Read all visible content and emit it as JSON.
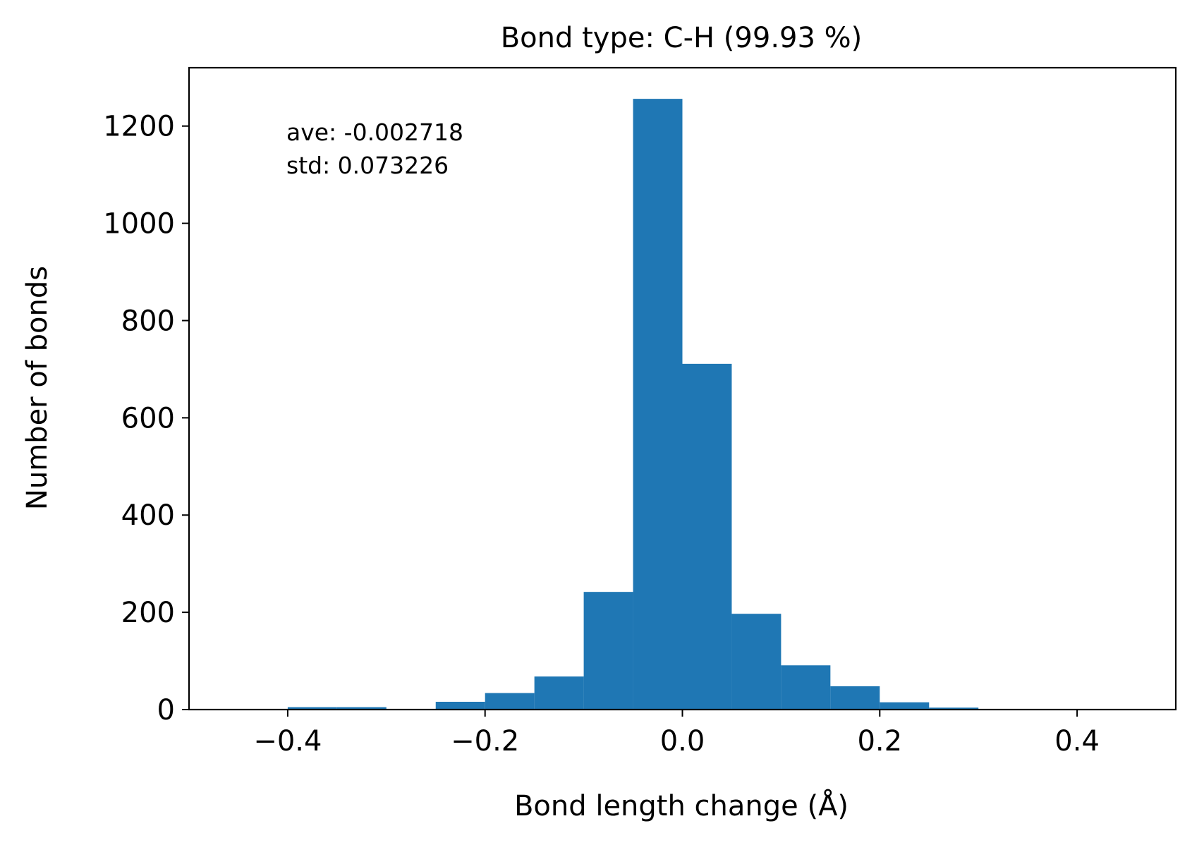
{
  "chart_data": {
    "type": "bar",
    "title": "Bond type: C-H (99.93 %)",
    "xlabel": "Bond length change (Å)",
    "ylabel": "Number of bonds",
    "xlim": [
      -0.5,
      0.5
    ],
    "ylim": [
      0,
      1320
    ],
    "xticks": [
      -0.4,
      -0.2,
      0.0,
      0.2,
      0.4
    ],
    "xtick_labels": [
      "−0.4",
      "−0.2",
      "0.0",
      "0.2",
      "0.4"
    ],
    "yticks": [
      0,
      200,
      400,
      600,
      800,
      1000,
      1200
    ],
    "ytick_labels": [
      "0",
      "200",
      "400",
      "600",
      "800",
      "1000",
      "1200"
    ],
    "bin_edges": [
      -0.45,
      -0.4,
      -0.35,
      -0.3,
      -0.25,
      -0.2,
      -0.15,
      -0.1,
      -0.05,
      0.0,
      0.05,
      0.1,
      0.15,
      0.2,
      0.25,
      0.3,
      0.35,
      0.4,
      0.45
    ],
    "values": [
      1,
      5,
      5,
      1,
      16,
      34,
      68,
      242,
      1256,
      711,
      197,
      91,
      48,
      15,
      4,
      1,
      0,
      1
    ],
    "bar_color": "#1f77b4",
    "grid": false,
    "annotations": [
      "ave: -0.002718",
      "std: 0.073226"
    ]
  }
}
